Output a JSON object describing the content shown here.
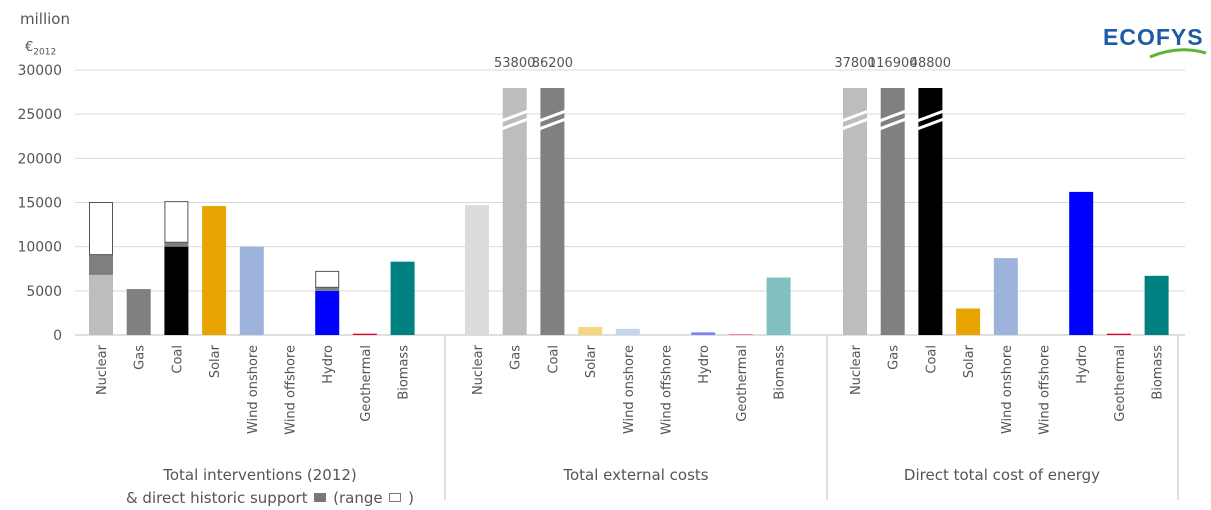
{
  "unit": {
    "line1": "million",
    "line2_prefix": "€",
    "line2_sub": "2012"
  },
  "logo": {
    "text": "ECOFYS",
    "color": "#1f5aa6",
    "accent": "#5cb531"
  },
  "group_labels": {
    "g1_line1": "Total interventions (2012)",
    "g1_line2_a": "& direct historic support",
    "g1_line2_b": "(range",
    "g1_line2_c": ")",
    "g2": "Total external costs",
    "g3": "Direct total cost of energy"
  },
  "chart_data": {
    "type": "bar",
    "ylim": [
      0,
      30000
    ],
    "yticks": [
      "0",
      "5000",
      "10000",
      "15000",
      "20000",
      "25000",
      "30000"
    ],
    "grid": true,
    "categories": [
      "Nuclear",
      "Gas",
      "Coal",
      "Solar",
      "Wind onshore",
      "Wind offshore",
      "Hydro",
      "Geothermal",
      "Biomass"
    ],
    "groups": [
      {
        "name": "Total interventions (2012) & direct historic support (range)",
        "bars": [
          {
            "category": "Nuclear",
            "base": 6800,
            "historic": 9100,
            "range_max": 15000,
            "color": "#bdbdbd"
          },
          {
            "category": "Gas",
            "base": 5200,
            "color": "#808080"
          },
          {
            "category": "Coal",
            "base": 10000,
            "historic": 10500,
            "range_max": 15100,
            "color": "#000000"
          },
          {
            "category": "Solar",
            "base": 14600,
            "color": "#e8a400"
          },
          {
            "category": "Wind onshore",
            "base": 10000,
            "color": "#9db3dc"
          },
          {
            "category": "Wind offshore",
            "base": 0,
            "color": "#9db3dc"
          },
          {
            "category": "Hydro",
            "base": 5000,
            "historic": 5400,
            "range_max": 7200,
            "color": "#0000ff"
          },
          {
            "category": "Geothermal",
            "base": 150,
            "color": "#e8002a"
          },
          {
            "category": "Biomass",
            "base": 8300,
            "color": "#008080"
          }
        ]
      },
      {
        "name": "Total external costs",
        "bars": [
          {
            "category": "Nuclear",
            "base": 14700,
            "color": "#dcdcdc"
          },
          {
            "category": "Gas",
            "base": 53800,
            "broken": true,
            "label": "53800",
            "color": "#bdbdbd"
          },
          {
            "category": "Coal",
            "base": 86200,
            "broken": true,
            "label": "86200",
            "color": "#808080"
          },
          {
            "category": "Solar",
            "base": 900,
            "color": "#f5d57e"
          },
          {
            "category": "Wind onshore",
            "base": 700,
            "color": "#c7d4ee"
          },
          {
            "category": "Wind offshore",
            "base": 0,
            "color": "#c7d4ee"
          },
          {
            "category": "Hydro",
            "base": 300,
            "color": "#8080ff"
          },
          {
            "category": "Geothermal",
            "base": 120,
            "color": "#f58a9c"
          },
          {
            "category": "Biomass",
            "base": 6500,
            "color": "#80c0c0"
          }
        ]
      },
      {
        "name": "Direct total cost of energy",
        "bars": [
          {
            "category": "Nuclear",
            "base": 37800,
            "broken": true,
            "label": "37800",
            "color": "#bdbdbd"
          },
          {
            "category": "Gas",
            "base": 116900,
            "broken": true,
            "label": "116900",
            "color": "#808080"
          },
          {
            "category": "Coal",
            "base": 48800,
            "broken": true,
            "label": "48800",
            "color": "#000000"
          },
          {
            "category": "Solar",
            "base": 3000,
            "color": "#e8a400"
          },
          {
            "category": "Wind onshore",
            "base": 8700,
            "color": "#9db3dc"
          },
          {
            "category": "Wind offshore",
            "base": 0,
            "color": "#9db3dc"
          },
          {
            "category": "Hydro",
            "base": 16200,
            "color": "#0000ff"
          },
          {
            "category": "Geothermal",
            "base": 150,
            "color": "#e8002a"
          },
          {
            "category": "Biomass",
            "base": 6700,
            "color": "#008080"
          }
        ]
      }
    ],
    "historic_color": "#7f7f7f",
    "range_color": "#ffffff"
  }
}
